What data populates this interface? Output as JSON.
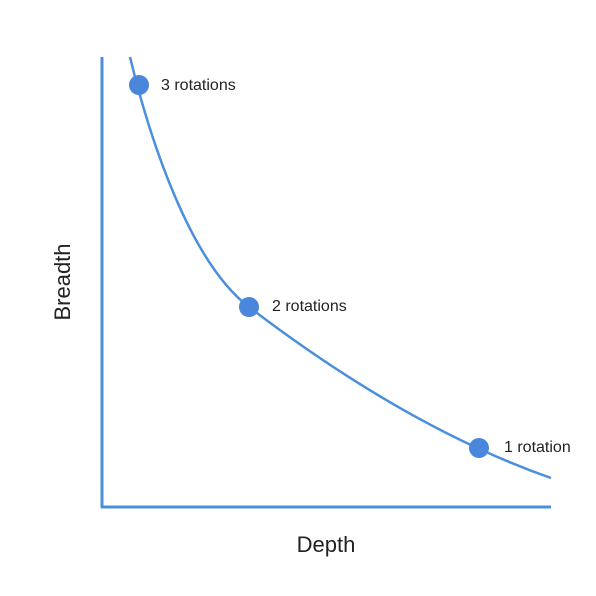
{
  "x_axis_label": "Depth",
  "y_axis_label": "Breadth",
  "points": [
    {
      "label": "3 rotations"
    },
    {
      "label": "2 rotations"
    },
    {
      "label": "1 rotation"
    }
  ]
}
